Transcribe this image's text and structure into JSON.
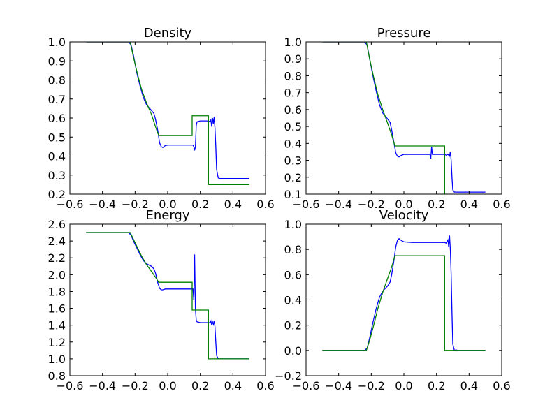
{
  "figure": {
    "background": "#ffffff"
  },
  "colors": {
    "simulation": "#0000ff",
    "exact": "#008000"
  },
  "chart_data": [
    {
      "type": "line",
      "title": "Density",
      "xlim": [
        -0.6,
        0.6
      ],
      "ylim": [
        0.2,
        1.0
      ],
      "xticks": [
        "−0.6",
        "−0.4",
        "−0.2",
        "0.0",
        "0.2",
        "0.4",
        "0.6"
      ],
      "yticks": [
        "0.2",
        "0.3",
        "0.4",
        "0.5",
        "0.6",
        "0.7",
        "0.8",
        "0.9",
        "1.0"
      ],
      "grid": false,
      "series": [
        {
          "color": "#0000ff",
          "points": [
            [
              -0.5,
              1.0
            ],
            [
              -0.24,
              1.0
            ],
            [
              -0.225,
              0.985
            ],
            [
              -0.21,
              0.93
            ],
            [
              -0.19,
              0.84
            ],
            [
              -0.17,
              0.77
            ],
            [
              -0.15,
              0.71
            ],
            [
              -0.13,
              0.67
            ],
            [
              -0.1,
              0.64
            ],
            [
              -0.085,
              0.625
            ],
            [
              -0.075,
              0.595
            ],
            [
              -0.06,
              0.53
            ],
            [
              -0.05,
              0.47
            ],
            [
              -0.04,
              0.45
            ],
            [
              -0.03,
              0.445
            ],
            [
              -0.015,
              0.455
            ],
            [
              0.0,
              0.458
            ],
            [
              0.05,
              0.458
            ],
            [
              0.1,
              0.458
            ],
            [
              0.155,
              0.458
            ],
            [
              0.16,
              0.45
            ],
            [
              0.165,
              0.43
            ],
            [
              0.17,
              0.45
            ],
            [
              0.175,
              0.56
            ],
            [
              0.18,
              0.58
            ],
            [
              0.2,
              0.585
            ],
            [
              0.25,
              0.585
            ],
            [
              0.26,
              0.58
            ],
            [
              0.265,
              0.59
            ],
            [
              0.27,
              0.555
            ],
            [
              0.275,
              0.6
            ],
            [
              0.28,
              0.57
            ],
            [
              0.285,
              0.605
            ],
            [
              0.29,
              0.545
            ],
            [
              0.295,
              0.45
            ],
            [
              0.3,
              0.33
            ],
            [
              0.31,
              0.285
            ],
            [
              0.32,
              0.282
            ],
            [
              0.5,
              0.282
            ]
          ]
        },
        {
          "color": "#008000",
          "points": [
            [
              -0.5,
              1.0
            ],
            [
              -0.23,
              1.0
            ],
            [
              -0.21,
              0.92
            ],
            [
              -0.185,
              0.83
            ],
            [
              -0.16,
              0.75
            ],
            [
              -0.13,
              0.68
            ],
            [
              -0.1,
              0.62
            ],
            [
              -0.075,
              0.555
            ],
            [
              -0.055,
              0.508
            ],
            [
              0.15,
              0.508
            ],
            [
              0.15,
              0.612
            ],
            [
              0.25,
              0.612
            ],
            [
              0.25,
              0.25
            ],
            [
              0.5,
              0.25
            ]
          ]
        }
      ]
    },
    {
      "type": "line",
      "title": "Pressure",
      "xlim": [
        -0.6,
        0.6
      ],
      "ylim": [
        0.1,
        1.0
      ],
      "xticks": [
        "−0.6",
        "−0.4",
        "−0.2",
        "0.0",
        "0.2",
        "0.4",
        "0.6"
      ],
      "yticks": [
        "0.1",
        "0.2",
        "0.3",
        "0.4",
        "0.5",
        "0.6",
        "0.7",
        "0.8",
        "0.9",
        "1.0"
      ],
      "grid": false,
      "series": [
        {
          "color": "#0000ff",
          "points": [
            [
              -0.5,
              1.0
            ],
            [
              -0.24,
              1.0
            ],
            [
              -0.225,
              0.98
            ],
            [
              -0.21,
              0.9
            ],
            [
              -0.19,
              0.8
            ],
            [
              -0.17,
              0.71
            ],
            [
              -0.15,
              0.63
            ],
            [
              -0.13,
              0.58
            ],
            [
              -0.1,
              0.545
            ],
            [
              -0.085,
              0.525
            ],
            [
              -0.075,
              0.48
            ],
            [
              -0.06,
              0.4
            ],
            [
              -0.05,
              0.345
            ],
            [
              -0.04,
              0.325
            ],
            [
              -0.03,
              0.32
            ],
            [
              -0.015,
              0.33
            ],
            [
              0.0,
              0.335
            ],
            [
              0.1,
              0.335
            ],
            [
              0.16,
              0.335
            ],
            [
              0.165,
              0.31
            ],
            [
              0.17,
              0.38
            ],
            [
              0.175,
              0.335
            ],
            [
              0.25,
              0.335
            ],
            [
              0.26,
              0.33
            ],
            [
              0.27,
              0.335
            ],
            [
              0.28,
              0.325
            ],
            [
              0.285,
              0.35
            ],
            [
              0.29,
              0.3
            ],
            [
              0.295,
              0.2
            ],
            [
              0.3,
              0.125
            ],
            [
              0.31,
              0.112
            ],
            [
              0.32,
              0.112
            ],
            [
              0.5,
              0.112
            ]
          ]
        },
        {
          "color": "#008000",
          "points": [
            [
              -0.5,
              1.0
            ],
            [
              -0.23,
              1.0
            ],
            [
              -0.21,
              0.9
            ],
            [
              -0.185,
              0.79
            ],
            [
              -0.16,
              0.69
            ],
            [
              -0.13,
              0.6
            ],
            [
              -0.1,
              0.52
            ],
            [
              -0.075,
              0.45
            ],
            [
              -0.055,
              0.385
            ],
            [
              0.25,
              0.385
            ],
            [
              0.25,
              0.1
            ]
          ]
        }
      ]
    },
    {
      "type": "line",
      "title": "Energy",
      "xlim": [
        -0.6,
        0.6
      ],
      "ylim": [
        0.8,
        2.6
      ],
      "xticks": [
        "−0.6",
        "−0.4",
        "−0.2",
        "0.0",
        "0.2",
        "0.4",
        "0.6"
      ],
      "yticks": [
        "0.8",
        "1.0",
        "1.2",
        "1.4",
        "1.6",
        "1.8",
        "2.0",
        "2.2",
        "2.4",
        "2.6"
      ],
      "grid": false,
      "series": [
        {
          "color": "#0000ff",
          "points": [
            [
              -0.5,
              2.5
            ],
            [
              -0.24,
              2.5
            ],
            [
              -0.225,
              2.47
            ],
            [
              -0.21,
              2.4
            ],
            [
              -0.19,
              2.32
            ],
            [
              -0.17,
              2.24
            ],
            [
              -0.15,
              2.17
            ],
            [
              -0.13,
              2.13
            ],
            [
              -0.1,
              2.1
            ],
            [
              -0.085,
              2.07
            ],
            [
              -0.075,
              2.02
            ],
            [
              -0.06,
              1.9
            ],
            [
              -0.05,
              1.84
            ],
            [
              -0.04,
              1.82
            ],
            [
              -0.03,
              1.82
            ],
            [
              -0.015,
              1.83
            ],
            [
              0.0,
              1.83
            ],
            [
              0.1,
              1.83
            ],
            [
              0.155,
              1.83
            ],
            [
              0.16,
              1.7
            ],
            [
              0.165,
              2.24
            ],
            [
              0.17,
              1.6
            ],
            [
              0.175,
              1.46
            ],
            [
              0.18,
              1.44
            ],
            [
              0.2,
              1.43
            ],
            [
              0.26,
              1.43
            ],
            [
              0.265,
              1.45
            ],
            [
              0.27,
              1.4
            ],
            [
              0.275,
              1.44
            ],
            [
              0.28,
              1.41
            ],
            [
              0.285,
              1.45
            ],
            [
              0.29,
              1.38
            ],
            [
              0.295,
              1.2
            ],
            [
              0.3,
              1.04
            ],
            [
              0.31,
              1.0
            ],
            [
              0.5,
              1.0
            ]
          ]
        },
        {
          "color": "#008000",
          "points": [
            [
              -0.5,
              2.5
            ],
            [
              -0.23,
              2.5
            ],
            [
              -0.21,
              2.42
            ],
            [
              -0.185,
              2.32
            ],
            [
              -0.16,
              2.22
            ],
            [
              -0.13,
              2.12
            ],
            [
              -0.1,
              2.04
            ],
            [
              -0.075,
              1.97
            ],
            [
              -0.055,
              1.91
            ],
            [
              0.15,
              1.91
            ],
            [
              0.15,
              1.58
            ],
            [
              0.25,
              1.58
            ],
            [
              0.25,
              1.0
            ],
            [
              0.5,
              1.0
            ]
          ]
        }
      ]
    },
    {
      "type": "line",
      "title": "Velocity",
      "xlim": [
        -0.6,
        0.6
      ],
      "ylim": [
        -0.2,
        1.0
      ],
      "xticks": [
        "−0.6",
        "−0.4",
        "−0.2",
        "0.0",
        "0.2",
        "0.4",
        "0.6"
      ],
      "yticks": [
        "−0.2",
        "0.0",
        "0.2",
        "0.4",
        "0.6",
        "0.8",
        "1.0"
      ],
      "grid": false,
      "series": [
        {
          "color": "#0000ff",
          "points": [
            [
              -0.5,
              0.0
            ],
            [
              -0.24,
              0.0
            ],
            [
              -0.225,
              0.02
            ],
            [
              -0.21,
              0.1
            ],
            [
              -0.19,
              0.22
            ],
            [
              -0.17,
              0.33
            ],
            [
              -0.15,
              0.42
            ],
            [
              -0.13,
              0.47
            ],
            [
              -0.1,
              0.51
            ],
            [
              -0.085,
              0.54
            ],
            [
              -0.075,
              0.6
            ],
            [
              -0.06,
              0.72
            ],
            [
              -0.05,
              0.82
            ],
            [
              -0.04,
              0.87
            ],
            [
              -0.03,
              0.885
            ],
            [
              -0.015,
              0.87
            ],
            [
              0.0,
              0.86
            ],
            [
              0.05,
              0.855
            ],
            [
              0.1,
              0.855
            ],
            [
              0.25,
              0.855
            ],
            [
              0.26,
              0.85
            ],
            [
              0.27,
              0.875
            ],
            [
              0.275,
              0.82
            ],
            [
              0.28,
              0.91
            ],
            [
              0.285,
              0.8
            ],
            [
              0.29,
              0.6
            ],
            [
              0.295,
              0.3
            ],
            [
              0.3,
              0.05
            ],
            [
              0.31,
              0.0
            ],
            [
              0.32,
              0.005
            ],
            [
              0.33,
              0.0
            ],
            [
              0.5,
              0.0
            ]
          ]
        },
        {
          "color": "#008000",
          "points": [
            [
              -0.5,
              0.0
            ],
            [
              -0.23,
              0.0
            ],
            [
              -0.21,
              0.08
            ],
            [
              -0.185,
              0.2
            ],
            [
              -0.16,
              0.33
            ],
            [
              -0.13,
              0.46
            ],
            [
              -0.1,
              0.57
            ],
            [
              -0.075,
              0.66
            ],
            [
              -0.055,
              0.75
            ],
            [
              0.25,
              0.75
            ],
            [
              0.25,
              0.0
            ],
            [
              0.5,
              0.0
            ]
          ]
        }
      ]
    }
  ]
}
